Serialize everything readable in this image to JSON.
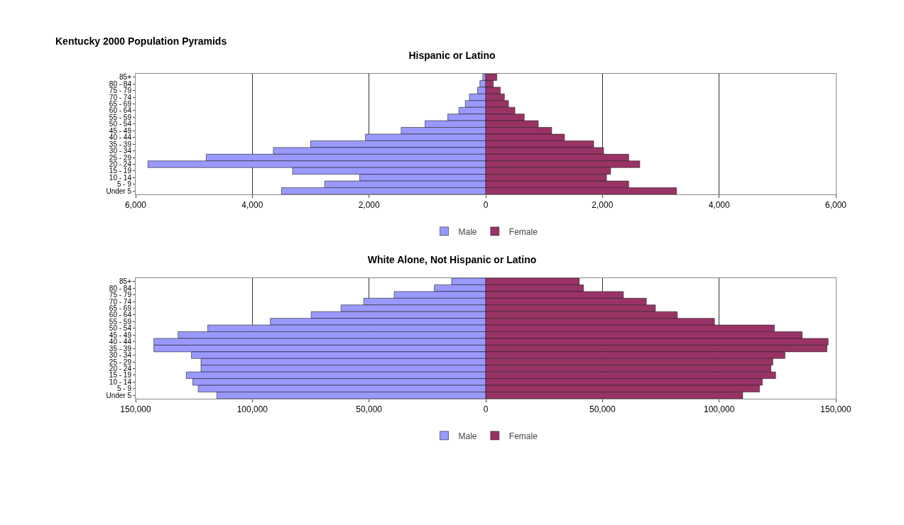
{
  "chart_data": [
    {
      "type": "bar",
      "title": "Kentucky 2000 Population Pyramids",
      "subtitle": "Hispanic or Latino",
      "orientation": "horizontal",
      "stacked": true,
      "categories": [
        "85+",
        "80 - 84",
        "75 - 79",
        "70 - 74",
        "65 - 69",
        "60 - 64",
        "55 - 59",
        "50 - 54",
        "45 - 49",
        "40 - 44",
        "35 - 39",
        "30 - 34",
        "25 - 29",
        "20 - 24",
        "15 - 19",
        "10 - 14",
        "5 - 9",
        "Under 5"
      ],
      "series": [
        {
          "name": "Male",
          "color": "#9999ff",
          "values": [
            -50,
            -100,
            -140,
            -280,
            -350,
            -460,
            -650,
            -1040,
            -1450,
            -2060,
            -3000,
            -3640,
            -4790,
            -5790,
            -3310,
            -2160,
            -2760,
            -3500
          ]
        },
        {
          "name": "Female",
          "color": "#993366",
          "values": [
            190,
            130,
            250,
            320,
            390,
            500,
            660,
            900,
            1130,
            1350,
            1850,
            2020,
            2450,
            2640,
            2140,
            2070,
            2450,
            3270
          ]
        }
      ],
      "xlim": [
        -6000,
        6000
      ],
      "xticks": [
        {
          "value": -6000,
          "label": "6,000"
        },
        {
          "value": -4000,
          "label": "4,000"
        },
        {
          "value": -2000,
          "label": "2,000"
        },
        0,
        {
          "value": 2000,
          "label": "2,000"
        },
        {
          "value": 4000,
          "label": "4,000"
        },
        {
          "value": 6000,
          "label": "6,000"
        }
      ],
      "grid": "x",
      "legend": "bottom"
    },
    {
      "type": "bar",
      "title": "White Alone, Not Hispanic or Latino",
      "orientation": "horizontal",
      "stacked": true,
      "categories": [
        "85+",
        "80 - 84",
        "75 - 79",
        "70 - 74",
        "65 - 69",
        "60 - 64",
        "55 - 59",
        "50 - 54",
        "45 - 49",
        "40 - 44",
        "35 - 39",
        "30 - 34",
        "25 - 29",
        "20 - 24",
        "15 - 19",
        "10 - 14",
        "5 - 9",
        "Under 5"
      ],
      "series": [
        {
          "name": "Male",
          "color": "#9999ff",
          "values": [
            -14600,
            -22000,
            -39200,
            -52300,
            -62000,
            -74800,
            -92300,
            -119100,
            -131800,
            -142200,
            -142200,
            -126100,
            -122000,
            -122000,
            -128300,
            -125500,
            -123200,
            -115200
          ]
        },
        {
          "name": "Female",
          "color": "#993366",
          "values": [
            40100,
            41900,
            59000,
            68800,
            72700,
            82100,
            98000,
            123700,
            135600,
            146700,
            146200,
            128200,
            123000,
            122200,
            124200,
            118500,
            117300,
            110100
          ]
        }
      ],
      "xlim": [
        -150000,
        150000
      ],
      "xticks": [
        {
          "value": -150000,
          "label": "150,000"
        },
        {
          "value": -100000,
          "label": "100,000"
        },
        {
          "value": -50000,
          "label": "50,000"
        },
        0,
        {
          "value": 50000,
          "label": "50,000"
        },
        {
          "value": 100000,
          "label": "100,000"
        },
        {
          "value": 150000,
          "label": "150,000"
        }
      ],
      "grid": "x",
      "legend": "bottom"
    }
  ]
}
